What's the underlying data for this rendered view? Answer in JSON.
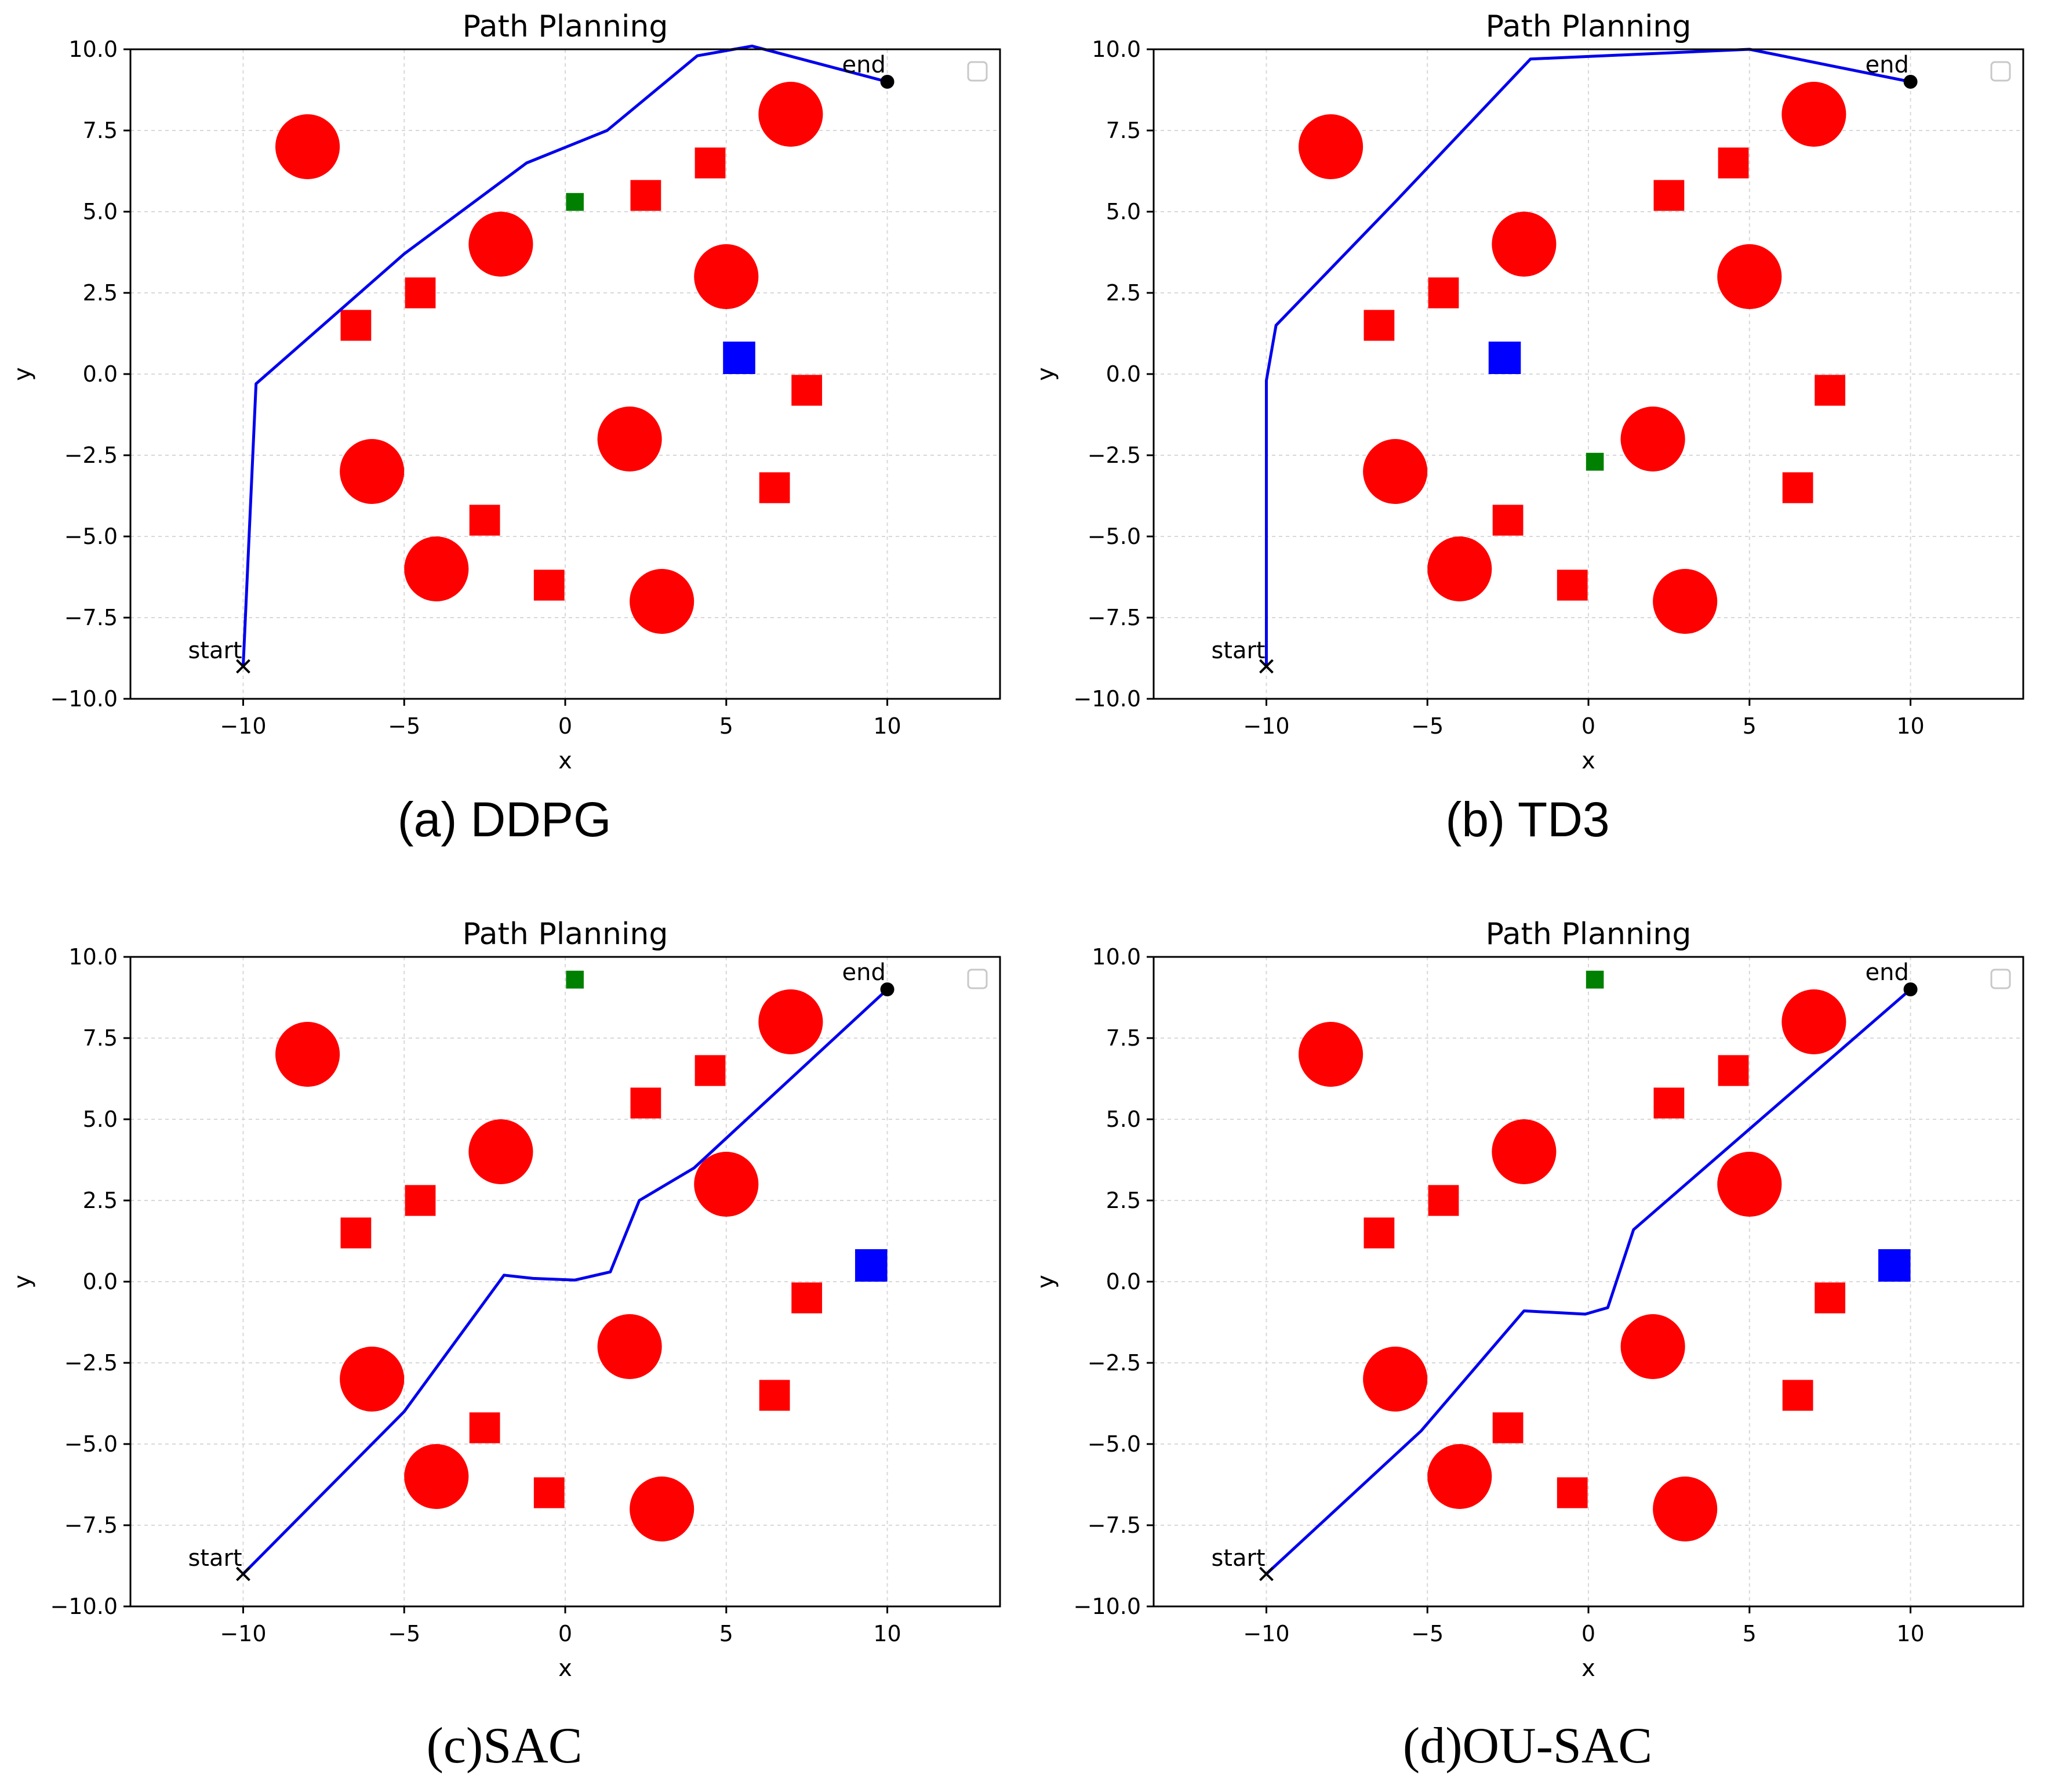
{
  "figure": {
    "panel_captions": [
      "(a) DDPG",
      "(b) TD3",
      "(c)SAC",
      "(d)OU-SAC"
    ]
  },
  "colors": {
    "obstacle": "#ff0000",
    "path": "#0000ee",
    "goal_marker": "#0000ff",
    "green_marker": "#008000",
    "grid": "#d8d8d8",
    "axes": "#000000"
  },
  "chart_data": [
    {
      "type": "scatter",
      "caption": "(a) DDPG",
      "title": "Path Planning",
      "xlabel": "x",
      "ylabel": "y",
      "xlim": [
        -13.5,
        13.5
      ],
      "ylim": [
        -10,
        10
      ],
      "xticks": [
        -10,
        -5,
        0,
        5,
        10
      ],
      "xtick_labels": [
        "−10",
        "−5",
        "0",
        "5",
        "10"
      ],
      "yticks": [
        10,
        7.5,
        5,
        2.5,
        0,
        -2.5,
        -5,
        -7.5,
        -10
      ],
      "ytick_labels": [
        "10.0",
        "7.5",
        "5.0",
        "2.5",
        "0.0",
        "−2.5",
        "−5.0",
        "−7.5",
        "−10.0"
      ],
      "grid": true,
      "legend": "top-right (empty)",
      "start": {
        "x": -10,
        "y": -9,
        "label": "start"
      },
      "end": {
        "x": 10,
        "y": 9,
        "label": "end"
      },
      "circles": [
        [
          -8,
          7
        ],
        [
          -2,
          4
        ],
        [
          5,
          3
        ],
        [
          7,
          8
        ],
        [
          2,
          -2
        ],
        [
          -6,
          -3
        ],
        [
          -4,
          -6
        ],
        [
          3,
          -7
        ]
      ],
      "squares": [
        [
          -6.5,
          1.5
        ],
        [
          -4.5,
          2.5
        ],
        [
          2.5,
          5.5
        ],
        [
          4.5,
          6.5
        ],
        [
          7.5,
          -0.5
        ],
        [
          6.5,
          -3.5
        ],
        [
          -2.5,
          -4.5
        ],
        [
          -0.5,
          -6.5
        ]
      ],
      "blue_square": [
        5.4,
        0.5
      ],
      "green_square": [
        0.3,
        5.3
      ],
      "path": {
        "x": [
          -10,
          -9.6,
          -5,
          -1.2,
          1.3,
          4.1,
          5.8,
          10
        ],
        "y": [
          -9,
          -0.3,
          3.7,
          6.5,
          7.5,
          9.8,
          10.1,
          9
        ]
      }
    },
    {
      "type": "scatter",
      "caption": "(b) TD3",
      "title": "Path Planning",
      "xlabel": "x",
      "ylabel": "y",
      "xlim": [
        -13.5,
        13.5
      ],
      "ylim": [
        -10,
        10
      ],
      "xticks": [
        -10,
        -5,
        0,
        5,
        10
      ],
      "xtick_labels": [
        "−10",
        "−5",
        "0",
        "5",
        "10"
      ],
      "yticks": [
        10,
        7.5,
        5,
        2.5,
        0,
        -2.5,
        -5,
        -7.5,
        -10
      ],
      "ytick_labels": [
        "10.0",
        "7.5",
        "5.0",
        "2.5",
        "0.0",
        "−2.5",
        "−5.0",
        "−7.5",
        "−10.0"
      ],
      "grid": true,
      "legend": "top-right (empty)",
      "start": {
        "x": -10,
        "y": -9,
        "label": "start"
      },
      "end": {
        "x": 10,
        "y": 9,
        "label": "end"
      },
      "circles": [
        [
          -8,
          7
        ],
        [
          -2,
          4
        ],
        [
          5,
          3
        ],
        [
          7,
          8
        ],
        [
          2,
          -2
        ],
        [
          -6,
          -3
        ],
        [
          -4,
          -6
        ],
        [
          3,
          -7
        ]
      ],
      "squares": [
        [
          -6.5,
          1.5
        ],
        [
          -4.5,
          2.5
        ],
        [
          2.5,
          5.5
        ],
        [
          4.5,
          6.5
        ],
        [
          7.5,
          -0.5
        ],
        [
          6.5,
          -3.5
        ],
        [
          -2.5,
          -4.5
        ],
        [
          -0.5,
          -6.5
        ]
      ],
      "blue_square": [
        -2.6,
        0.5
      ],
      "green_square": [
        0.2,
        -2.7
      ],
      "path": {
        "x": [
          -10,
          -10,
          -9.7,
          -6,
          -1.8,
          5,
          10
        ],
        "y": [
          -9,
          -0.2,
          1.5,
          5.3,
          9.7,
          10,
          9
        ]
      }
    },
    {
      "type": "scatter",
      "caption": "(c)SAC",
      "title": "Path Planning",
      "xlabel": "x",
      "ylabel": "y",
      "xlim": [
        -13.5,
        13.5
      ],
      "ylim": [
        -10,
        10
      ],
      "xticks": [
        -10,
        -5,
        0,
        5,
        10
      ],
      "xtick_labels": [
        "−10",
        "−5",
        "0",
        "5",
        "10"
      ],
      "yticks": [
        10,
        7.5,
        5,
        2.5,
        0,
        -2.5,
        -5,
        -7.5,
        -10
      ],
      "ytick_labels": [
        "10.0",
        "7.5",
        "5.0",
        "2.5",
        "0.0",
        "−2.5",
        "−5.0",
        "−7.5",
        "−10.0"
      ],
      "grid": true,
      "legend": "top-right (empty)",
      "start": {
        "x": -10,
        "y": -9,
        "label": "start"
      },
      "end": {
        "x": 10,
        "y": 9,
        "label": "end"
      },
      "circles": [
        [
          -8,
          7
        ],
        [
          -2,
          4
        ],
        [
          5,
          3
        ],
        [
          7,
          8
        ],
        [
          2,
          -2
        ],
        [
          -6,
          -3
        ],
        [
          -4,
          -6
        ],
        [
          3,
          -7
        ]
      ],
      "squares": [
        [
          -6.5,
          1.5
        ],
        [
          -4.5,
          2.5
        ],
        [
          2.5,
          5.5
        ],
        [
          4.5,
          6.5
        ],
        [
          7.5,
          -0.5
        ],
        [
          6.5,
          -3.5
        ],
        [
          -2.5,
          -4.5
        ],
        [
          -0.5,
          -6.5
        ]
      ],
      "blue_square": [
        9.5,
        0.5
      ],
      "green_square": [
        0.3,
        9.3
      ],
      "path": {
        "x": [
          -10,
          -5,
          -1.9,
          -1,
          0.3,
          1.4,
          2.3,
          4,
          10
        ],
        "y": [
          -9,
          -4,
          0.2,
          0.1,
          0.05,
          0.3,
          2.5,
          3.5,
          9
        ]
      }
    },
    {
      "type": "scatter",
      "caption": "(d)OU-SAC",
      "title": "Path Planning",
      "xlabel": "x",
      "ylabel": "y",
      "xlim": [
        -13.5,
        13.5
      ],
      "ylim": [
        -10,
        10
      ],
      "xticks": [
        -10,
        -5,
        0,
        5,
        10
      ],
      "xtick_labels": [
        "−10",
        "−5",
        "0",
        "5",
        "10"
      ],
      "yticks": [
        10,
        7.5,
        5,
        2.5,
        0,
        -2.5,
        -5,
        -7.5,
        -10
      ],
      "ytick_labels": [
        "10.0",
        "7.5",
        "5.0",
        "2.5",
        "0.0",
        "−2.5",
        "−5.0",
        "−7.5",
        "−10.0"
      ],
      "grid": true,
      "legend": "top-right (empty)",
      "start": {
        "x": -10,
        "y": -9,
        "label": "start"
      },
      "end": {
        "x": 10,
        "y": 9,
        "label": "end"
      },
      "circles": [
        [
          -8,
          7
        ],
        [
          -2,
          4
        ],
        [
          5,
          3
        ],
        [
          7,
          8
        ],
        [
          2,
          -2
        ],
        [
          -6,
          -3
        ],
        [
          -4,
          -6
        ],
        [
          3,
          -7
        ]
      ],
      "squares": [
        [
          -6.5,
          1.5
        ],
        [
          -4.5,
          2.5
        ],
        [
          2.5,
          5.5
        ],
        [
          4.5,
          6.5
        ],
        [
          7.5,
          -0.5
        ],
        [
          6.5,
          -3.5
        ],
        [
          -2.5,
          -4.5
        ],
        [
          -0.5,
          -6.5
        ]
      ],
      "blue_square": [
        9.5,
        0.5
      ],
      "green_square": [
        0.2,
        9.3
      ],
      "path": {
        "x": [
          -10,
          -5.2,
          -2,
          -0.1,
          0.6,
          1.4,
          10
        ],
        "y": [
          -9,
          -4.6,
          -0.9,
          -1,
          -0.8,
          1.6,
          9
        ]
      }
    }
  ]
}
